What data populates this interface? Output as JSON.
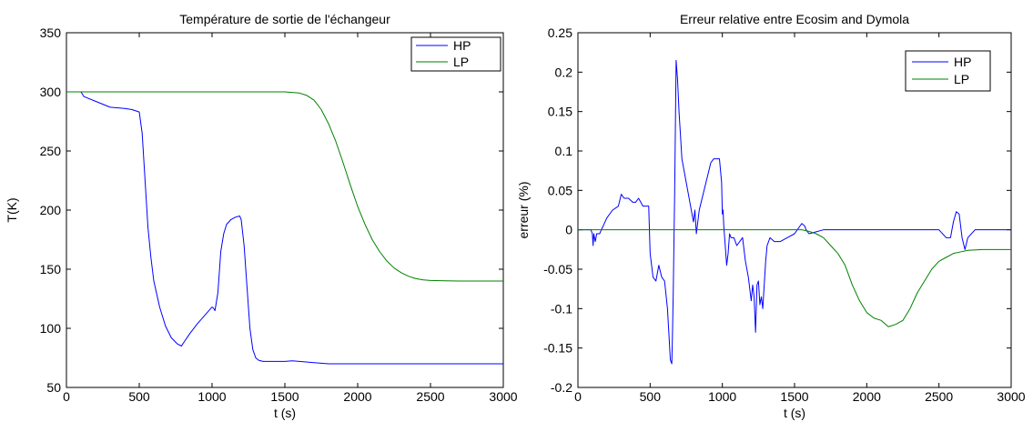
{
  "figure": {
    "background": "#ffffff"
  },
  "chart_data": [
    {
      "type": "line",
      "title": "Température de sortie de l'échangeur",
      "xlabel": "t (s)",
      "ylabel": "T(K)",
      "xlim": [
        0,
        3000
      ],
      "ylim": [
        50,
        350
      ],
      "xticks": [
        0,
        500,
        1000,
        1500,
        2000,
        2500,
        3000
      ],
      "yticks": [
        50,
        100,
        150,
        200,
        250,
        300,
        350
      ],
      "grid": false,
      "legend_position": "top-right",
      "series": [
        {
          "name": "HP",
          "color": "#0000ff",
          "x": [
            0,
            100,
            120,
            200,
            300,
            400,
            450,
            500,
            520,
            540,
            560,
            580,
            600,
            640,
            680,
            720,
            760,
            790,
            800,
            850,
            900,
            950,
            1000,
            1010,
            1020,
            1040,
            1060,
            1080,
            1100,
            1130,
            1160,
            1190,
            1200,
            1220,
            1240,
            1260,
            1280,
            1300,
            1320,
            1350,
            1400,
            1500,
            1550,
            1600,
            1700,
            1800,
            2000,
            2500,
            3000
          ],
          "y": [
            300,
            300,
            296,
            292,
            287,
            286,
            285,
            283,
            265,
            225,
            185,
            160,
            140,
            118,
            102,
            92,
            87,
            85,
            87,
            96,
            104,
            111,
            118,
            117,
            115,
            130,
            165,
            180,
            188,
            192,
            194,
            195,
            192,
            170,
            135,
            100,
            82,
            75,
            73,
            72,
            72,
            72,
            72.5,
            72,
            71,
            70,
            70,
            70,
            70
          ]
        },
        {
          "name": "LP",
          "color": "#008000",
          "x": [
            0,
            1000,
            1500,
            1600,
            1650,
            1700,
            1750,
            1800,
            1850,
            1900,
            1950,
            2000,
            2050,
            2100,
            2150,
            2200,
            2250,
            2300,
            2350,
            2400,
            2450,
            2500,
            2600,
            2700,
            2800,
            3000
          ],
          "y": [
            300,
            300,
            300,
            299,
            297,
            293,
            285,
            273,
            258,
            240,
            221,
            203,
            188,
            175,
            165,
            157,
            151,
            147,
            144,
            142,
            141,
            140.5,
            140.2,
            140,
            140,
            140
          ]
        }
      ]
    },
    {
      "type": "line",
      "title": "Erreur relative entre Ecosim and Dymola",
      "xlabel": "t (s)",
      "ylabel": "erreur (%)",
      "xlim": [
        0,
        3000
      ],
      "ylim": [
        -0.2,
        0.25
      ],
      "xticks": [
        0,
        500,
        1000,
        1500,
        2000,
        2500,
        3000
      ],
      "yticks": [
        -0.2,
        -0.15,
        -0.1,
        -0.05,
        0,
        0.05,
        0.1,
        0.15,
        0.2,
        0.25
      ],
      "ytick_labels": [
        "-0.2",
        "-0.15",
        "-0.1",
        "-0.05",
        "0",
        "0.05",
        "0.1",
        "0.15",
        "0.2",
        "0.25"
      ],
      "grid": false,
      "legend_position": "top-right",
      "series": [
        {
          "name": "HP",
          "color": "#0000ff",
          "x": [
            0,
            90,
            100,
            105,
            110,
            120,
            130,
            150,
            200,
            240,
            280,
            300,
            320,
            350,
            380,
            400,
            420,
            450,
            490,
            500,
            510,
            520,
            540,
            560,
            580,
            600,
            620,
            640,
            650,
            655,
            660,
            670,
            680,
            690,
            700,
            720,
            740,
            760,
            780,
            800,
            810,
            820,
            840,
            860,
            880,
            900,
            920,
            940,
            960,
            980,
            995,
            1000,
            1005,
            1010,
            1020,
            1030,
            1040,
            1050,
            1060,
            1070,
            1080,
            1100,
            1140,
            1160,
            1180,
            1200,
            1210,
            1220,
            1230,
            1235,
            1240,
            1250,
            1260,
            1270,
            1280,
            1290,
            1300,
            1310,
            1330,
            1360,
            1400,
            1450,
            1500,
            1550,
            1570,
            1580,
            1600,
            1700,
            1800,
            2000,
            2200,
            2400,
            2500,
            2550,
            2580,
            2600,
            2620,
            2640,
            2660,
            2680,
            2700,
            2750,
            2800,
            3000
          ],
          "y": [
            0,
            0,
            -0.005,
            -0.02,
            -0.005,
            -0.015,
            -0.005,
            -0.005,
            0.015,
            0.025,
            0.03,
            0.045,
            0.04,
            0.04,
            0.035,
            0.035,
            0.04,
            0.03,
            0.03,
            -0.03,
            -0.045,
            -0.06,
            -0.065,
            -0.045,
            -0.06,
            -0.065,
            -0.1,
            -0.165,
            -0.17,
            -0.13,
            -0.08,
            0.05,
            0.215,
            0.19,
            0.15,
            0.09,
            0.07,
            0.05,
            0.03,
            0.01,
            0.025,
            -0.005,
            0.025,
            0.04,
            0.055,
            0.07,
            0.085,
            0.09,
            0.09,
            0.09,
            0.06,
            0.02,
            0.025,
            0.005,
            -0.02,
            -0.045,
            -0.03,
            -0.005,
            -0.01,
            -0.01,
            -0.01,
            -0.02,
            -0.01,
            -0.04,
            -0.06,
            -0.09,
            -0.07,
            -0.085,
            -0.13,
            -0.1,
            -0.07,
            -0.065,
            -0.095,
            -0.085,
            -0.1,
            -0.07,
            -0.04,
            -0.02,
            -0.01,
            -0.015,
            -0.015,
            -0.01,
            -0.005,
            0.008,
            0.005,
            0,
            -0.005,
            0,
            0,
            0,
            0,
            0,
            0,
            -0.01,
            -0.01,
            0.01,
            0.023,
            0.02,
            -0.01,
            -0.025,
            -0.01,
            0,
            0,
            0
          ]
        },
        {
          "name": "LP",
          "color": "#008000",
          "x": [
            0,
            1500,
            1550,
            1600,
            1650,
            1700,
            1750,
            1800,
            1850,
            1900,
            1950,
            2000,
            2050,
            2100,
            2150,
            2200,
            2250,
            2300,
            2350,
            2400,
            2450,
            2500,
            2550,
            2600,
            2650,
            2700,
            2800,
            3000
          ],
          "y": [
            0,
            0,
            0,
            -0.002,
            -0.005,
            -0.01,
            -0.02,
            -0.03,
            -0.045,
            -0.07,
            -0.09,
            -0.105,
            -0.112,
            -0.115,
            -0.123,
            -0.12,
            -0.115,
            -0.1,
            -0.08,
            -0.065,
            -0.05,
            -0.04,
            -0.035,
            -0.03,
            -0.028,
            -0.026,
            -0.025,
            -0.025
          ]
        }
      ]
    }
  ]
}
